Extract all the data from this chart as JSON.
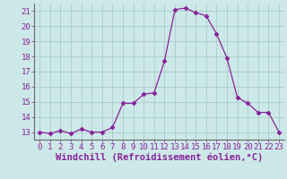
{
  "x": [
    0,
    1,
    2,
    3,
    4,
    5,
    6,
    7,
    8,
    9,
    10,
    11,
    12,
    13,
    14,
    15,
    16,
    17,
    18,
    19,
    20,
    21,
    22,
    23
  ],
  "y": [
    13.0,
    12.9,
    13.1,
    12.9,
    13.2,
    13.0,
    13.0,
    13.3,
    14.9,
    14.9,
    15.5,
    15.6,
    17.7,
    21.1,
    21.2,
    20.9,
    20.7,
    19.5,
    17.9,
    15.3,
    14.9,
    14.3,
    14.3,
    13.0
  ],
  "line_color": "#882299",
  "marker": "D",
  "marker_size": 2.5,
  "bg_color": "#cce8e8",
  "grid_color": "#aacccc",
  "xlabel": "Windchill (Refroidissement éolien,°C)",
  "xlim": [
    -0.5,
    23.5
  ],
  "ylim": [
    12.5,
    21.5
  ],
  "yticks": [
    13,
    14,
    15,
    16,
    17,
    18,
    19,
    20,
    21
  ],
  "xticks": [
    0,
    1,
    2,
    3,
    4,
    5,
    6,
    7,
    8,
    9,
    10,
    11,
    12,
    13,
    14,
    15,
    16,
    17,
    18,
    19,
    20,
    21,
    22,
    23
  ],
  "tick_color": "#882299",
  "axis_color": "#666666",
  "tick_labelsize": 6.5,
  "xlabel_fontsize": 7.5
}
